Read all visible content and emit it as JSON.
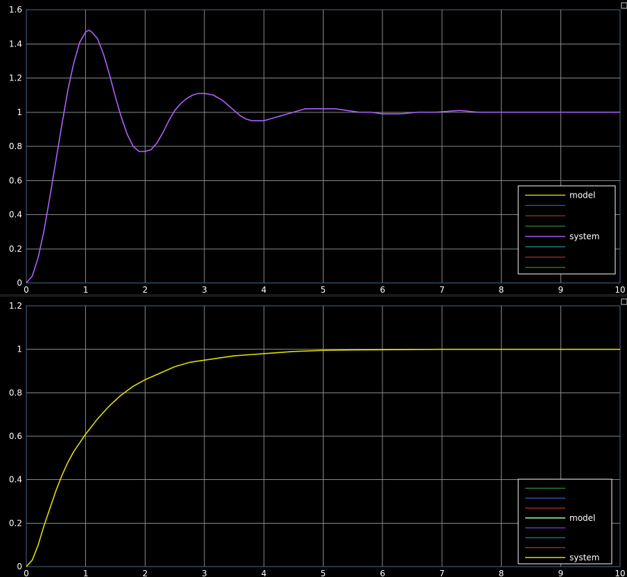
{
  "chart_data": [
    {
      "type": "line",
      "title": "",
      "xlabel": "",
      "ylabel": "",
      "xlim": [
        0,
        10
      ],
      "ylim": [
        0,
        1.6
      ],
      "grid": true,
      "legend_placement": "bottom-right",
      "x_ticks": [
        "0",
        "1",
        "2",
        "3",
        "4",
        "5",
        "6",
        "7",
        "8",
        "9",
        "10"
      ],
      "y_ticks": [
        "0",
        "0.2",
        "0.4",
        "0.6",
        "0.8",
        "1",
        "1.2",
        "1.4",
        "1.6"
      ],
      "legend": [
        {
          "label": "model",
          "color": "#e0e000"
        },
        {
          "label": "",
          "color": "#3a4aa8"
        },
        {
          "label": "",
          "color": "#9a2a2a"
        },
        {
          "label": "",
          "color": "#2a7a3a"
        },
        {
          "label": "system",
          "color": "#b060ff"
        },
        {
          "label": "",
          "color": "#1a8a8a"
        },
        {
          "label": "",
          "color": "#9a2a2a"
        },
        {
          "label": "",
          "color": "#2a7a3a"
        }
      ],
      "series": [
        {
          "name": "system",
          "color": "#b060ff",
          "x": [
            0,
            0.1,
            0.2,
            0.3,
            0.4,
            0.5,
            0.6,
            0.7,
            0.8,
            0.9,
            1.0,
            1.05,
            1.1,
            1.2,
            1.3,
            1.4,
            1.5,
            1.6,
            1.7,
            1.8,
            1.9,
            2.0,
            2.1,
            2.2,
            2.3,
            2.4,
            2.5,
            2.6,
            2.7,
            2.8,
            2.9,
            3.0,
            3.15,
            3.3,
            3.4,
            3.5,
            3.6,
            3.7,
            3.8,
            3.9,
            4.0,
            4.1,
            4.2,
            4.3,
            4.4,
            4.5,
            4.6,
            4.7,
            4.8,
            4.9,
            5.0,
            5.2,
            5.4,
            5.6,
            5.8,
            6.0,
            6.3,
            6.6,
            6.9,
            7.3,
            7.6,
            8.0,
            8.5,
            9.0,
            9.5,
            10.0
          ],
          "y": [
            0,
            0.04,
            0.15,
            0.31,
            0.51,
            0.72,
            0.93,
            1.13,
            1.29,
            1.41,
            1.47,
            1.48,
            1.47,
            1.43,
            1.34,
            1.22,
            1.09,
            0.97,
            0.87,
            0.8,
            0.77,
            0.77,
            0.78,
            0.82,
            0.88,
            0.95,
            1.01,
            1.05,
            1.08,
            1.1,
            1.11,
            1.11,
            1.1,
            1.07,
            1.04,
            1.01,
            0.98,
            0.96,
            0.95,
            0.95,
            0.95,
            0.96,
            0.97,
            0.98,
            0.99,
            1.0,
            1.01,
            1.02,
            1.02,
            1.02,
            1.02,
            1.02,
            1.01,
            1.0,
            1.0,
            0.99,
            0.99,
            1.0,
            1.0,
            1.01,
            1.0,
            1.0,
            1.0,
            1.0,
            1.0,
            1.0
          ]
        }
      ]
    },
    {
      "type": "line",
      "title": "",
      "xlabel": "",
      "ylabel": "",
      "xlim": [
        0,
        10
      ],
      "ylim": [
        0,
        1.2
      ],
      "grid": true,
      "legend_placement": "bottom-right",
      "x_ticks": [
        "0",
        "1",
        "2",
        "3",
        "4",
        "5",
        "6",
        "7",
        "8",
        "9",
        "10"
      ],
      "y_ticks": [
        "0",
        "0.2",
        "0.4",
        "0.6",
        "0.8",
        "1",
        "1.2"
      ],
      "legend": [
        {
          "label": "",
          "color": "#2a7a3a"
        },
        {
          "label": "",
          "color": "#3a4aa8"
        },
        {
          "label": "",
          "color": "#9a2a2a"
        },
        {
          "label": "model",
          "color": "#a0ffa0"
        },
        {
          "label": "",
          "color": "#6a3aa8"
        },
        {
          "label": "",
          "color": "#1a6a8a"
        },
        {
          "label": "",
          "color": "#9a2a2a"
        },
        {
          "label": "system",
          "color": "#e0e000"
        }
      ],
      "series": [
        {
          "name": "system",
          "color": "#e0e000",
          "x": [
            0,
            0.1,
            0.2,
            0.3,
            0.4,
            0.5,
            0.6,
            0.7,
            0.8,
            1.0,
            1.2,
            1.4,
            1.6,
            1.8,
            2.0,
            2.25,
            2.5,
            2.75,
            3.0,
            3.25,
            3.5,
            3.75,
            4.0,
            4.5,
            5.0,
            5.5,
            6.0,
            7.0,
            8.0,
            9.0,
            10.0
          ],
          "y": [
            0,
            0.03,
            0.1,
            0.19,
            0.27,
            0.35,
            0.42,
            0.48,
            0.53,
            0.61,
            0.68,
            0.74,
            0.79,
            0.83,
            0.86,
            0.89,
            0.92,
            0.94,
            0.95,
            0.96,
            0.97,
            0.975,
            0.98,
            0.99,
            0.995,
            0.997,
            0.998,
            1.0,
            1.0,
            1.0,
            1.0
          ]
        }
      ]
    }
  ],
  "ui": {
    "corner_icon_name": "maximize-icon",
    "axes_border_color": "#4a6a8a",
    "grid_color": "#8a8a8a",
    "background_color": "#000000"
  }
}
